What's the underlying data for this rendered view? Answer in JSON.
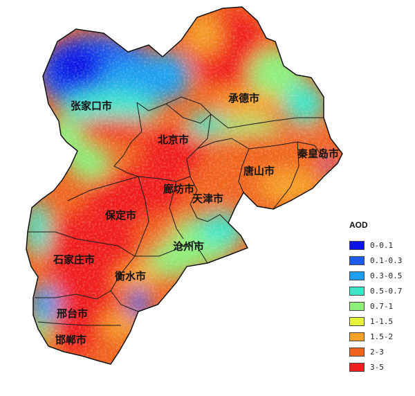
{
  "map": {
    "cities": [
      {
        "id": "zhangjiakou",
        "label": "张家口市"
      },
      {
        "id": "chengde",
        "label": "承德市"
      },
      {
        "id": "beijing",
        "label": "北京市"
      },
      {
        "id": "qinhuangdao",
        "label": "秦皇岛市"
      },
      {
        "id": "tangshan",
        "label": "唐山市"
      },
      {
        "id": "langfang",
        "label": "廊坊市"
      },
      {
        "id": "tianjin",
        "label": "天津市"
      },
      {
        "id": "baoding",
        "label": "保定市"
      },
      {
        "id": "cangzhou",
        "label": "沧州市"
      },
      {
        "id": "shijiazhuang",
        "label": "石家庄市"
      },
      {
        "id": "hengshui",
        "label": "衡水市"
      },
      {
        "id": "xingtai",
        "label": "邢台市"
      },
      {
        "id": "handan",
        "label": "邯郸市"
      }
    ]
  },
  "legend": {
    "title": "AOD",
    "items": [
      {
        "label": "0-0.1",
        "color": "#0a14e6"
      },
      {
        "label": "0.1-0.3",
        "color": "#1e5af0"
      },
      {
        "label": "0.3-0.5",
        "color": "#1ea0f0"
      },
      {
        "label": "0.5-0.7",
        "color": "#3ce6c8"
      },
      {
        "label": "0.7-1",
        "color": "#8cf07a"
      },
      {
        "label": "1-1.5",
        "color": "#e6f53c"
      },
      {
        "label": "1.5-2",
        "color": "#f5a028"
      },
      {
        "label": "2-3",
        "color": "#f0641e"
      },
      {
        "label": "3-5",
        "color": "#f01e1e"
      }
    ]
  }
}
